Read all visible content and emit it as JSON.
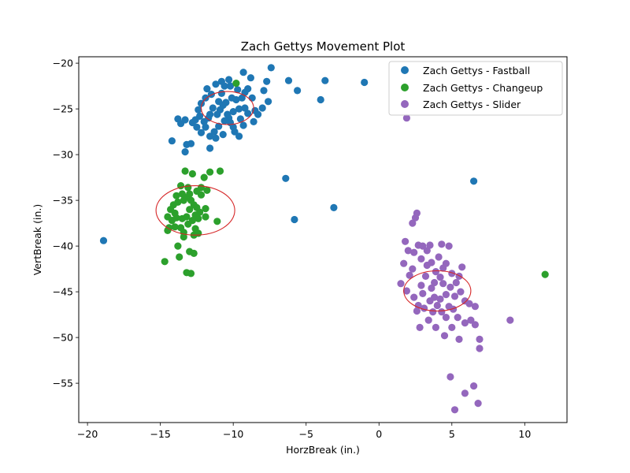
{
  "chart_data": {
    "type": "scatter",
    "title": "Zach Gettys Movement Plot",
    "xlabel": "HorzBreak (in.)",
    "ylabel": "VertBreak (in.)",
    "xlim": [
      -20.6,
      12.9
    ],
    "ylim": [
      -59.3,
      -19.3
    ],
    "xticks": [
      -20,
      -15,
      -10,
      -5,
      0,
      5,
      10
    ],
    "yticks": [
      -55,
      -50,
      -45,
      -40,
      -35,
      -30,
      -25,
      -20
    ],
    "xtick_labels": [
      "−20",
      "−15",
      "−10",
      "−5",
      "0",
      "5",
      "10"
    ],
    "ytick_labels": [
      "−55",
      "−50",
      "−45",
      "−40",
      "−35",
      "−30",
      "−25",
      "−20"
    ],
    "grid": false,
    "legend_position": "top-right",
    "series": [
      {
        "name": "Zach Gettys - Fastball",
        "color": "#1f77b4",
        "points": [
          [
            -18.9,
            -39.4
          ],
          [
            -14.2,
            -28.5
          ],
          [
            -13.6,
            -26.6
          ],
          [
            -13.8,
            -26.1
          ],
          [
            -13.3,
            -26.2
          ],
          [
            -13.2,
            -28.9
          ],
          [
            -12.9,
            -28.8
          ],
          [
            -13.3,
            -29.7
          ],
          [
            -12.8,
            -26.5
          ],
          [
            -12.5,
            -27.0
          ],
          [
            -12.3,
            -25.8
          ],
          [
            -12.2,
            -24.4
          ],
          [
            -12.0,
            -26.4
          ],
          [
            -11.9,
            -27.0
          ],
          [
            -11.6,
            -25.6
          ],
          [
            -11.6,
            -28.0
          ],
          [
            -11.6,
            -29.3
          ],
          [
            -11.3,
            -27.5
          ],
          [
            -11.2,
            -28.2
          ],
          [
            -11.0,
            -26.9
          ],
          [
            -11.0,
            -24.2
          ],
          [
            -10.8,
            -23.3
          ],
          [
            -10.6,
            -22.5
          ],
          [
            -10.5,
            -24.3
          ],
          [
            -10.3,
            -26.0
          ],
          [
            -10.2,
            -22.5
          ],
          [
            -10.0,
            -27.0
          ],
          [
            -9.9,
            -27.5
          ],
          [
            -10.7,
            -27.8
          ],
          [
            -9.6,
            -25.0
          ],
          [
            -9.6,
            -28.0
          ],
          [
            -9.4,
            -23.8
          ],
          [
            -9.3,
            -21.0
          ],
          [
            -9.2,
            -24.9
          ],
          [
            -9.0,
            -22.8
          ],
          [
            -8.8,
            -21.6
          ],
          [
            -8.7,
            -23.8
          ],
          [
            -8.6,
            -26.4
          ],
          [
            -8.5,
            -25.2
          ],
          [
            -8.3,
            -25.6
          ],
          [
            -8.0,
            -24.9
          ],
          [
            -7.9,
            -23.0
          ],
          [
            -7.7,
            -22.0
          ],
          [
            -7.6,
            -24.2
          ],
          [
            -7.4,
            -20.5
          ],
          [
            -11.8,
            -22.8
          ],
          [
            -11.5,
            -23.4
          ],
          [
            -11.2,
            -22.3
          ],
          [
            -11.9,
            -23.8
          ],
          [
            -12.4,
            -25.1
          ],
          [
            -12.6,
            -26.2
          ],
          [
            -12.2,
            -27.6
          ],
          [
            -10.9,
            -25.1
          ],
          [
            -10.4,
            -25.6
          ],
          [
            -9.8,
            -24.0
          ],
          [
            -10.1,
            -23.8
          ],
          [
            -10.7,
            -24.6
          ],
          [
            -11.1,
            -25.6
          ],
          [
            -10.2,
            -26.5
          ],
          [
            -9.5,
            -26.1
          ],
          [
            -9.7,
            -22.9
          ],
          [
            -10.8,
            -22.0
          ],
          [
            -11.4,
            -24.9
          ],
          [
            -11.7,
            -26.0
          ],
          [
            -10.6,
            -26.3
          ],
          [
            -10.0,
            -25.3
          ],
          [
            -9.2,
            -23.2
          ],
          [
            -9.0,
            -25.5
          ],
          [
            -9.3,
            -26.8
          ],
          [
            -10.3,
            -21.8
          ],
          [
            -6.4,
            -32.6
          ],
          [
            -6.2,
            -21.9
          ],
          [
            -5.8,
            -37.1
          ],
          [
            -5.6,
            -23.0
          ],
          [
            -4.0,
            -24.0
          ],
          [
            -3.7,
            -21.9
          ],
          [
            -3.1,
            -35.8
          ],
          [
            -1.0,
            -22.1
          ],
          [
            6.5,
            -32.9
          ]
        ]
      },
      {
        "name": "Zach Gettys - Changeup",
        "color": "#2ca02c",
        "points": [
          [
            -14.7,
            -41.7
          ],
          [
            -14.5,
            -36.8
          ],
          [
            -14.5,
            -38.3
          ],
          [
            -14.3,
            -36.0
          ],
          [
            -14.2,
            -37.2
          ],
          [
            -14.0,
            -37.9
          ],
          [
            -14.0,
            -36.4
          ],
          [
            -13.9,
            -34.5
          ],
          [
            -13.8,
            -40.0
          ],
          [
            -13.8,
            -35.2
          ],
          [
            -13.7,
            -41.2
          ],
          [
            -13.6,
            -33.4
          ],
          [
            -13.5,
            -37.0
          ],
          [
            -13.4,
            -35.0
          ],
          [
            -13.4,
            -38.5
          ],
          [
            -13.3,
            -31.8
          ],
          [
            -13.2,
            -42.9
          ],
          [
            -13.1,
            -33.6
          ],
          [
            -13.0,
            -40.6
          ],
          [
            -13.0,
            -36.0
          ],
          [
            -12.9,
            -43.0
          ],
          [
            -12.8,
            -32.1
          ],
          [
            -12.7,
            -40.8
          ],
          [
            -12.7,
            -35.5
          ],
          [
            -12.6,
            -38.1
          ],
          [
            -12.5,
            -34.0
          ],
          [
            -12.4,
            -37.0
          ],
          [
            -12.3,
            -36.3
          ],
          [
            -12.2,
            -33.6
          ],
          [
            -12.0,
            -32.5
          ],
          [
            -11.9,
            -35.9
          ],
          [
            -11.8,
            -33.9
          ],
          [
            -11.6,
            -31.9
          ],
          [
            -11.1,
            -37.3
          ],
          [
            -10.9,
            -31.8
          ],
          [
            -9.8,
            -22.2
          ],
          [
            -13.5,
            -34.3
          ],
          [
            -13.2,
            -36.8
          ],
          [
            -12.9,
            -35.0
          ],
          [
            -12.6,
            -36.6
          ],
          [
            -13.6,
            -38.0
          ],
          [
            -13.1,
            -37.6
          ],
          [
            -12.8,
            -37.2
          ],
          [
            -13.3,
            -34.7
          ],
          [
            -12.5,
            -35.8
          ],
          [
            -14.1,
            -35.5
          ],
          [
            -13.9,
            -36.9
          ],
          [
            -12.4,
            -38.6
          ],
          [
            -13.4,
            -39.0
          ],
          [
            -12.7,
            -38.8
          ],
          [
            -14.4,
            -38.0
          ],
          [
            -13.0,
            -34.3
          ],
          [
            -12.2,
            -34.4
          ],
          [
            -11.9,
            -36.8
          ],
          [
            11.4,
            -43.1
          ]
        ]
      },
      {
        "name": "Zach Gettys - Slider",
        "color": "#9467bd",
        "points": [
          [
            1.9,
            -26.0
          ],
          [
            2.3,
            -37.5
          ],
          [
            2.5,
            -36.9
          ],
          [
            2.6,
            -36.4
          ],
          [
            1.8,
            -39.5
          ],
          [
            2.0,
            -40.5
          ],
          [
            2.4,
            -40.7
          ],
          [
            1.7,
            -41.9
          ],
          [
            1.5,
            -44.1
          ],
          [
            1.9,
            -44.9
          ],
          [
            2.3,
            -42.5
          ],
          [
            2.7,
            -39.9
          ],
          [
            3.0,
            -40.0
          ],
          [
            3.3,
            -40.5
          ],
          [
            3.6,
            -41.8
          ],
          [
            3.9,
            -42.8
          ],
          [
            4.2,
            -43.4
          ],
          [
            4.6,
            -41.9
          ],
          [
            4.8,
            -40.0
          ],
          [
            5.0,
            -43.0
          ],
          [
            5.3,
            -44.0
          ],
          [
            5.6,
            -45.0
          ],
          [
            5.9,
            -46.0
          ],
          [
            6.2,
            -46.3
          ],
          [
            6.6,
            -46.6
          ],
          [
            6.3,
            -48.1
          ],
          [
            6.6,
            -48.6
          ],
          [
            5.9,
            -48.4
          ],
          [
            5.4,
            -47.8
          ],
          [
            5.0,
            -48.9
          ],
          [
            4.5,
            -49.8
          ],
          [
            3.9,
            -48.9
          ],
          [
            3.4,
            -48.1
          ],
          [
            2.8,
            -48.9
          ],
          [
            2.6,
            -47.1
          ],
          [
            2.4,
            -45.6
          ],
          [
            2.9,
            -44.3
          ],
          [
            3.2,
            -43.3
          ],
          [
            3.6,
            -44.6
          ],
          [
            3.8,
            -45.6
          ],
          [
            4.0,
            -46.5
          ],
          [
            4.3,
            -47.2
          ],
          [
            4.6,
            -45.3
          ],
          [
            4.9,
            -44.5
          ],
          [
            5.2,
            -45.5
          ],
          [
            4.4,
            -44.1
          ],
          [
            3.5,
            -46.0
          ],
          [
            3.1,
            -46.8
          ],
          [
            2.7,
            -46.5
          ],
          [
            3.3,
            -42.1
          ],
          [
            4.1,
            -41.2
          ],
          [
            4.4,
            -42.4
          ],
          [
            3.7,
            -47.2
          ],
          [
            4.8,
            -46.6
          ],
          [
            5.5,
            -43.3
          ],
          [
            5.7,
            -42.3
          ],
          [
            2.9,
            -41.4
          ],
          [
            3.5,
            -39.9
          ],
          [
            4.3,
            -39.8
          ],
          [
            2.1,
            -43.2
          ],
          [
            5.5,
            -50.2
          ],
          [
            6.9,
            -50.2
          ],
          [
            6.9,
            -51.2
          ],
          [
            9.0,
            -48.1
          ],
          [
            4.9,
            -54.3
          ],
          [
            6.5,
            -55.3
          ],
          [
            5.9,
            -56.1
          ],
          [
            6.8,
            -57.2
          ],
          [
            5.2,
            -57.9
          ],
          [
            4.2,
            -45.8
          ],
          [
            3.8,
            -44.0
          ],
          [
            4.6,
            -47.8
          ],
          [
            3.0,
            -45.2
          ],
          [
            5.1,
            -46.9
          ]
        ]
      }
    ],
    "ellipses": [
      {
        "series": "Zach Gettys - Fastball",
        "color": "#d62728",
        "cx": -10.4,
        "cy": -24.9,
        "rx": 1.8,
        "ry": 1.8
      },
      {
        "series": "Zach Gettys - Changeup",
        "color": "#d62728",
        "cx": -12.6,
        "cy": -36.1,
        "rx": 2.7,
        "ry": 2.7
      },
      {
        "series": "Zach Gettys - Slider",
        "color": "#d62728",
        "cx": 4.0,
        "cy": -44.9,
        "rx": 2.3,
        "ry": 2.2
      }
    ]
  }
}
